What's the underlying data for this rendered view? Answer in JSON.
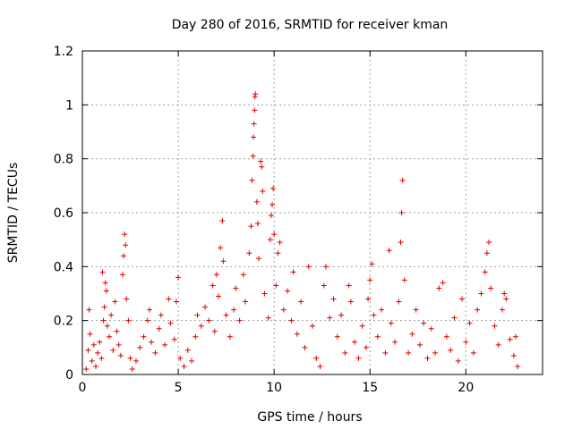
{
  "chart_data": {
    "type": "scatter",
    "title": "Day 280 of 2016, SRMTID for receiver kman",
    "xlabel": "GPS time / hours",
    "ylabel": "SRMTID / TECUs",
    "xlim": [
      0,
      24
    ],
    "ylim": [
      0,
      1.2
    ],
    "x_ticks": [
      0,
      5,
      10,
      15,
      20
    ],
    "x_tick_labels": [
      "0",
      "5",
      "10",
      "15",
      "20"
    ],
    "y_ticks": [
      0,
      0.2,
      0.4,
      0.6,
      0.8,
      1.0,
      1.2
    ],
    "y_tick_labels": [
      "0",
      "0.2",
      "0.4",
      "0.6",
      "0.8",
      "1",
      "1.2"
    ],
    "grid": true,
    "marker": "+",
    "color": "#e00000",
    "points": [
      [
        0.2,
        0.02
      ],
      [
        0.3,
        0.09
      ],
      [
        0.35,
        0.24
      ],
      [
        0.4,
        0.15
      ],
      [
        0.5,
        0.05
      ],
      [
        0.6,
        0.11
      ],
      [
        0.7,
        0.03
      ],
      [
        0.8,
        0.08
      ],
      [
        0.9,
        0.12
      ],
      [
        1.0,
        0.06
      ],
      [
        1.05,
        0.38
      ],
      [
        1.1,
        0.2
      ],
      [
        1.15,
        0.25
      ],
      [
        1.2,
        0.34
      ],
      [
        1.25,
        0.31
      ],
      [
        1.3,
        0.18
      ],
      [
        1.4,
        0.14
      ],
      [
        1.5,
        0.22
      ],
      [
        1.6,
        0.09
      ],
      [
        1.7,
        0.27
      ],
      [
        1.8,
        0.16
      ],
      [
        1.9,
        0.11
      ],
      [
        2.0,
        0.07
      ],
      [
        2.1,
        0.37
      ],
      [
        2.15,
        0.44
      ],
      [
        2.2,
        0.52
      ],
      [
        2.25,
        0.48
      ],
      [
        2.3,
        0.28
      ],
      [
        2.4,
        0.2
      ],
      [
        2.5,
        0.06
      ],
      [
        2.6,
        0.02
      ],
      [
        2.8,
        0.05
      ],
      [
        3.0,
        0.1
      ],
      [
        3.2,
        0.14
      ],
      [
        3.4,
        0.2
      ],
      [
        3.5,
        0.24
      ],
      [
        3.6,
        0.12
      ],
      [
        3.8,
        0.08
      ],
      [
        4.0,
        0.17
      ],
      [
        4.1,
        0.22
      ],
      [
        4.3,
        0.11
      ],
      [
        4.5,
        0.28
      ],
      [
        4.6,
        0.19
      ],
      [
        4.8,
        0.13
      ],
      [
        4.9,
        0.27
      ],
      [
        5.0,
        0.36
      ],
      [
        5.1,
        0.06
      ],
      [
        5.3,
        0.03
      ],
      [
        5.5,
        0.09
      ],
      [
        5.7,
        0.05
      ],
      [
        5.9,
        0.14
      ],
      [
        6.0,
        0.22
      ],
      [
        6.2,
        0.18
      ],
      [
        6.4,
        0.25
      ],
      [
        6.6,
        0.2
      ],
      [
        6.8,
        0.33
      ],
      [
        6.9,
        0.16
      ],
      [
        7.0,
        0.37
      ],
      [
        7.1,
        0.29
      ],
      [
        7.2,
        0.47
      ],
      [
        7.3,
        0.57
      ],
      [
        7.35,
        0.42
      ],
      [
        7.5,
        0.22
      ],
      [
        7.7,
        0.14
      ],
      [
        7.9,
        0.24
      ],
      [
        8.0,
        0.32
      ],
      [
        8.2,
        0.2
      ],
      [
        8.4,
        0.37
      ],
      [
        8.5,
        0.27
      ],
      [
        8.7,
        0.45
      ],
      [
        8.8,
        0.55
      ],
      [
        8.85,
        0.72
      ],
      [
        8.9,
        0.81
      ],
      [
        8.92,
        0.88
      ],
      [
        8.95,
        0.93
      ],
      [
        8.98,
        0.98
      ],
      [
        9.0,
        1.03
      ],
      [
        9.02,
        1.04
      ],
      [
        9.1,
        0.64
      ],
      [
        9.15,
        0.56
      ],
      [
        9.2,
        0.43
      ],
      [
        9.3,
        0.79
      ],
      [
        9.35,
        0.77
      ],
      [
        9.4,
        0.68
      ],
      [
        9.5,
        0.3
      ],
      [
        9.7,
        0.21
      ],
      [
        9.8,
        0.5
      ],
      [
        9.85,
        0.59
      ],
      [
        9.9,
        0.63
      ],
      [
        9.95,
        0.69
      ],
      [
        10.0,
        0.52
      ],
      [
        10.1,
        0.33
      ],
      [
        10.2,
        0.45
      ],
      [
        10.3,
        0.49
      ],
      [
        10.5,
        0.24
      ],
      [
        10.7,
        0.31
      ],
      [
        10.9,
        0.2
      ],
      [
        11.0,
        0.38
      ],
      [
        11.2,
        0.15
      ],
      [
        11.4,
        0.27
      ],
      [
        11.6,
        0.1
      ],
      [
        11.8,
        0.4
      ],
      [
        12.0,
        0.18
      ],
      [
        12.2,
        0.06
      ],
      [
        12.4,
        0.03
      ],
      [
        12.6,
        0.33
      ],
      [
        12.7,
        0.4
      ],
      [
        12.9,
        0.21
      ],
      [
        13.1,
        0.28
      ],
      [
        13.3,
        0.14
      ],
      [
        13.5,
        0.22
      ],
      [
        13.7,
        0.08
      ],
      [
        13.9,
        0.33
      ],
      [
        14.0,
        0.27
      ],
      [
        14.2,
        0.12
      ],
      [
        14.4,
        0.06
      ],
      [
        14.6,
        0.18
      ],
      [
        14.8,
        0.1
      ],
      [
        14.9,
        0.28
      ],
      [
        15.0,
        0.35
      ],
      [
        15.1,
        0.41
      ],
      [
        15.2,
        0.22
      ],
      [
        15.4,
        0.14
      ],
      [
        15.6,
        0.24
      ],
      [
        15.8,
        0.08
      ],
      [
        16.0,
        0.46
      ],
      [
        16.1,
        0.19
      ],
      [
        16.3,
        0.12
      ],
      [
        16.5,
        0.27
      ],
      [
        16.6,
        0.49
      ],
      [
        16.65,
        0.6
      ],
      [
        16.7,
        0.72
      ],
      [
        16.8,
        0.35
      ],
      [
        17.0,
        0.08
      ],
      [
        17.2,
        0.15
      ],
      [
        17.4,
        0.24
      ],
      [
        17.6,
        0.11
      ],
      [
        17.8,
        0.19
      ],
      [
        18.0,
        0.06
      ],
      [
        18.2,
        0.17
      ],
      [
        18.4,
        0.08
      ],
      [
        18.6,
        0.32
      ],
      [
        18.8,
        0.34
      ],
      [
        19.0,
        0.14
      ],
      [
        19.2,
        0.09
      ],
      [
        19.4,
        0.21
      ],
      [
        19.6,
        0.05
      ],
      [
        19.8,
        0.28
      ],
      [
        20.0,
        0.12
      ],
      [
        20.2,
        0.19
      ],
      [
        20.4,
        0.08
      ],
      [
        20.6,
        0.24
      ],
      [
        20.8,
        0.3
      ],
      [
        21.0,
        0.38
      ],
      [
        21.1,
        0.45
      ],
      [
        21.2,
        0.49
      ],
      [
        21.3,
        0.32
      ],
      [
        21.5,
        0.18
      ],
      [
        21.7,
        0.11
      ],
      [
        21.9,
        0.24
      ],
      [
        22.0,
        0.3
      ],
      [
        22.1,
        0.28
      ],
      [
        22.3,
        0.13
      ],
      [
        22.5,
        0.07
      ],
      [
        22.6,
        0.14
      ],
      [
        22.7,
        0.03
      ]
    ]
  }
}
